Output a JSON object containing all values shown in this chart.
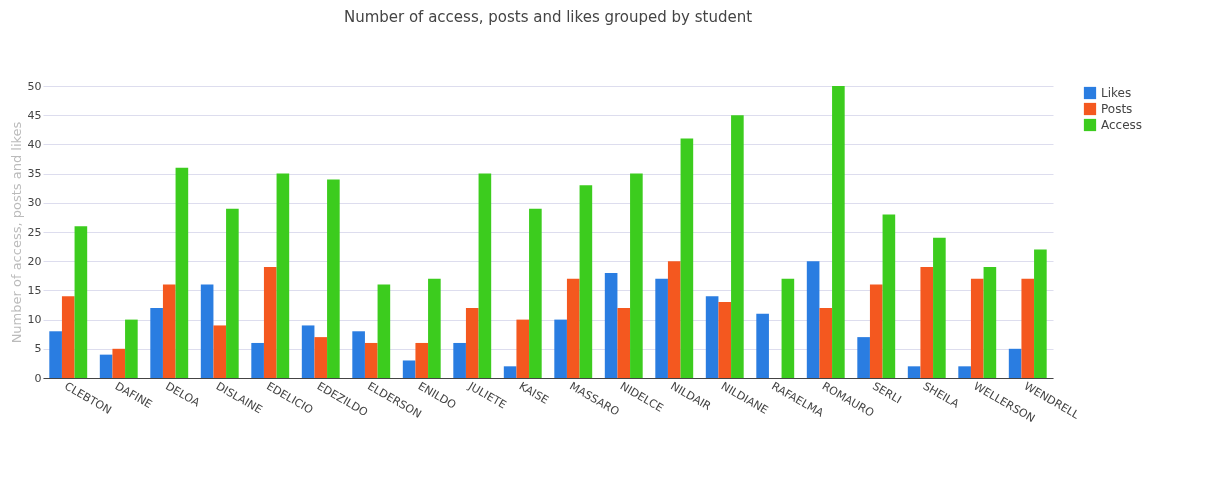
{
  "chart_data": {
    "type": "bar",
    "title": "Number of access, posts and likes grouped by student",
    "ylabel": "Number of access, posts and likes",
    "categories": [
      "CLEBTON",
      "DAFINE",
      "DELOA",
      "DISLAINE",
      "EDELICIO",
      "EDEZILDO",
      "ELDERSON",
      "ENILDO",
      "JULIETE",
      "KAISE",
      "MASSARO",
      "NIDELCE",
      "NILDAIR",
      "NILDIANE",
      "RAFAELMA",
      "ROMAURO",
      "SERLI",
      "SHEILA",
      "WELLERSON",
      "WENDRELL"
    ],
    "series": [
      {
        "name": "Likes",
        "color": "#2a7de1",
        "values": [
          8,
          4,
          12,
          16,
          6,
          9,
          8,
          3,
          6,
          2,
          10,
          18,
          17,
          14,
          11,
          20,
          7,
          2,
          2,
          5
        ]
      },
      {
        "name": "Posts",
        "color": "#f4581f",
        "values": [
          14,
          5,
          16,
          9,
          19,
          7,
          6,
          6,
          12,
          10,
          17,
          12,
          20,
          13,
          0,
          12,
          16,
          19,
          17,
          17
        ]
      },
      {
        "name": "Access",
        "color": "#3ccc1e",
        "values": [
          26,
          10,
          36,
          29,
          35,
          34,
          16,
          17,
          35,
          29,
          33,
          35,
          41,
          45,
          17,
          50,
          28,
          24,
          19,
          22
        ]
      }
    ],
    "ylim": [
      0,
      50
    ],
    "yticks": [
      0,
      5,
      10,
      15,
      20,
      25,
      30,
      35,
      40,
      45,
      50
    ],
    "grid": "y",
    "legend": "top right"
  }
}
